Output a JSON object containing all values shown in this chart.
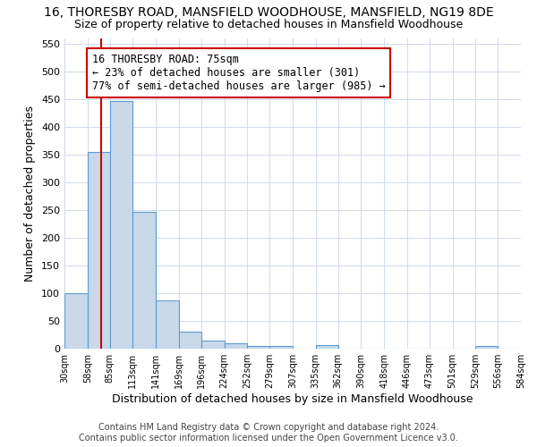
{
  "title": "16, THORESBY ROAD, MANSFIELD WOODHOUSE, MANSFIELD, NG19 8DE",
  "subtitle": "Size of property relative to detached houses in Mansfield Woodhouse",
  "xlabel": "Distribution of detached houses by size in Mansfield Woodhouse",
  "ylabel": "Number of detached properties",
  "footer_line1": "Contains HM Land Registry data © Crown copyright and database right 2024.",
  "footer_line2": "Contains public sector information licensed under the Open Government Licence v3.0.",
  "bins": [
    30,
    58,
    85,
    113,
    141,
    169,
    196,
    224,
    252,
    279,
    307,
    335,
    362,
    390,
    418,
    446,
    473,
    501,
    529,
    556,
    584
  ],
  "bar_values": [
    100,
    355,
    447,
    246,
    87,
    30,
    14,
    9,
    5,
    5,
    0,
    6,
    0,
    0,
    0,
    0,
    0,
    0,
    5,
    0
  ],
  "bar_color": "#c9d9ea",
  "bar_edge_color": "#5b9bd5",
  "property_size": 75,
  "property_label": "16 THORESBY ROAD: 75sqm",
  "pct_smaller": 23,
  "count_smaller": 301,
  "pct_larger_semi": 77,
  "count_larger_semi": 985,
  "vline_color": "#cc0000",
  "annotation_box_edge_color": "#cc0000",
  "ylim": [
    0,
    560
  ],
  "yticks": [
    0,
    50,
    100,
    150,
    200,
    250,
    300,
    350,
    400,
    450,
    500,
    550
  ],
  "bg_color": "#ffffff",
  "plot_bg_color": "#ffffff",
  "title_fontsize": 10,
  "subtitle_fontsize": 9,
  "axis_label_fontsize": 9,
  "tick_fontsize": 8,
  "footer_fontsize": 7
}
